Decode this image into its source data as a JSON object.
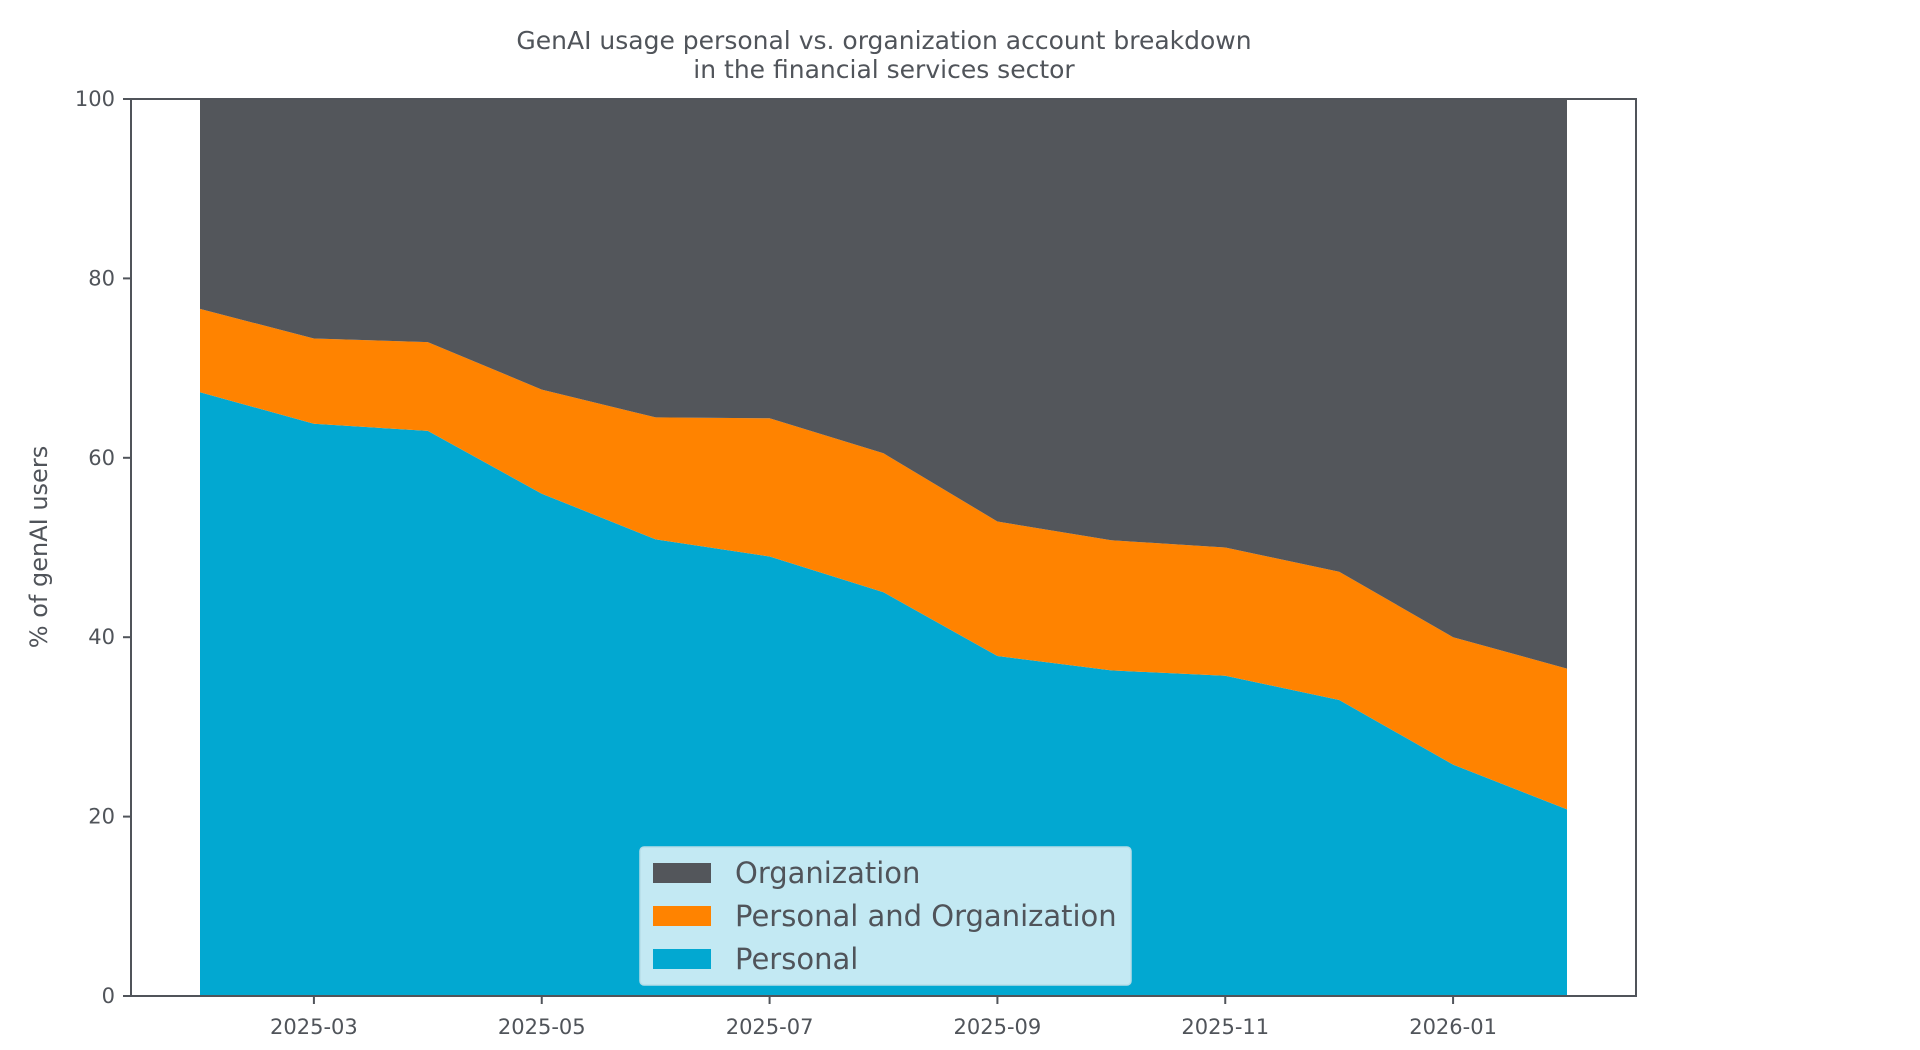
{
  "chart_data": {
    "type": "area",
    "stacked": true,
    "title_lines": [
      "GenAI usage personal vs. organization account breakdown",
      "in the financial services sector"
    ],
    "xlabel": "",
    "ylabel": "% of genAI users",
    "ylim": [
      0,
      100
    ],
    "yticks": [
      "0",
      "20",
      "40",
      "60",
      "80",
      "100"
    ],
    "x": [
      "2025-02",
      "2025-03",
      "2025-04",
      "2025-05",
      "2025-06",
      "2025-07",
      "2025-08",
      "2025-09",
      "2025-10",
      "2025-11",
      "2025-12",
      "2026-01",
      "2026-02"
    ],
    "xticks": [
      "2025-03",
      "2025-05",
      "2025-07",
      "2025-09",
      "2025-11",
      "2026-01"
    ],
    "series": [
      {
        "name": "Personal",
        "color": "#02a8d1",
        "values": [
          67.3,
          63.8,
          63.0,
          56.0,
          50.9,
          49.0,
          45.0,
          37.9,
          36.3,
          35.7,
          33.0,
          25.8,
          20.8
        ]
      },
      {
        "name": "Personal and Organization",
        "color": "#ff8300",
        "values": [
          9.3,
          9.5,
          9.9,
          11.6,
          13.6,
          15.4,
          15.5,
          15.0,
          14.5,
          14.3,
          14.3,
          14.2,
          15.7
        ]
      },
      {
        "name": "Organization",
        "color": "#53565b",
        "values": [
          23.4,
          26.7,
          27.1,
          32.4,
          35.5,
          35.6,
          39.5,
          47.1,
          49.2,
          50.0,
          52.7,
          60.0,
          63.5
        ]
      }
    ],
    "legend": {
      "position": "bottom-center",
      "entries": [
        "Organization",
        "Personal and Organization",
        "Personal"
      ],
      "background": "#cdecf4"
    }
  }
}
